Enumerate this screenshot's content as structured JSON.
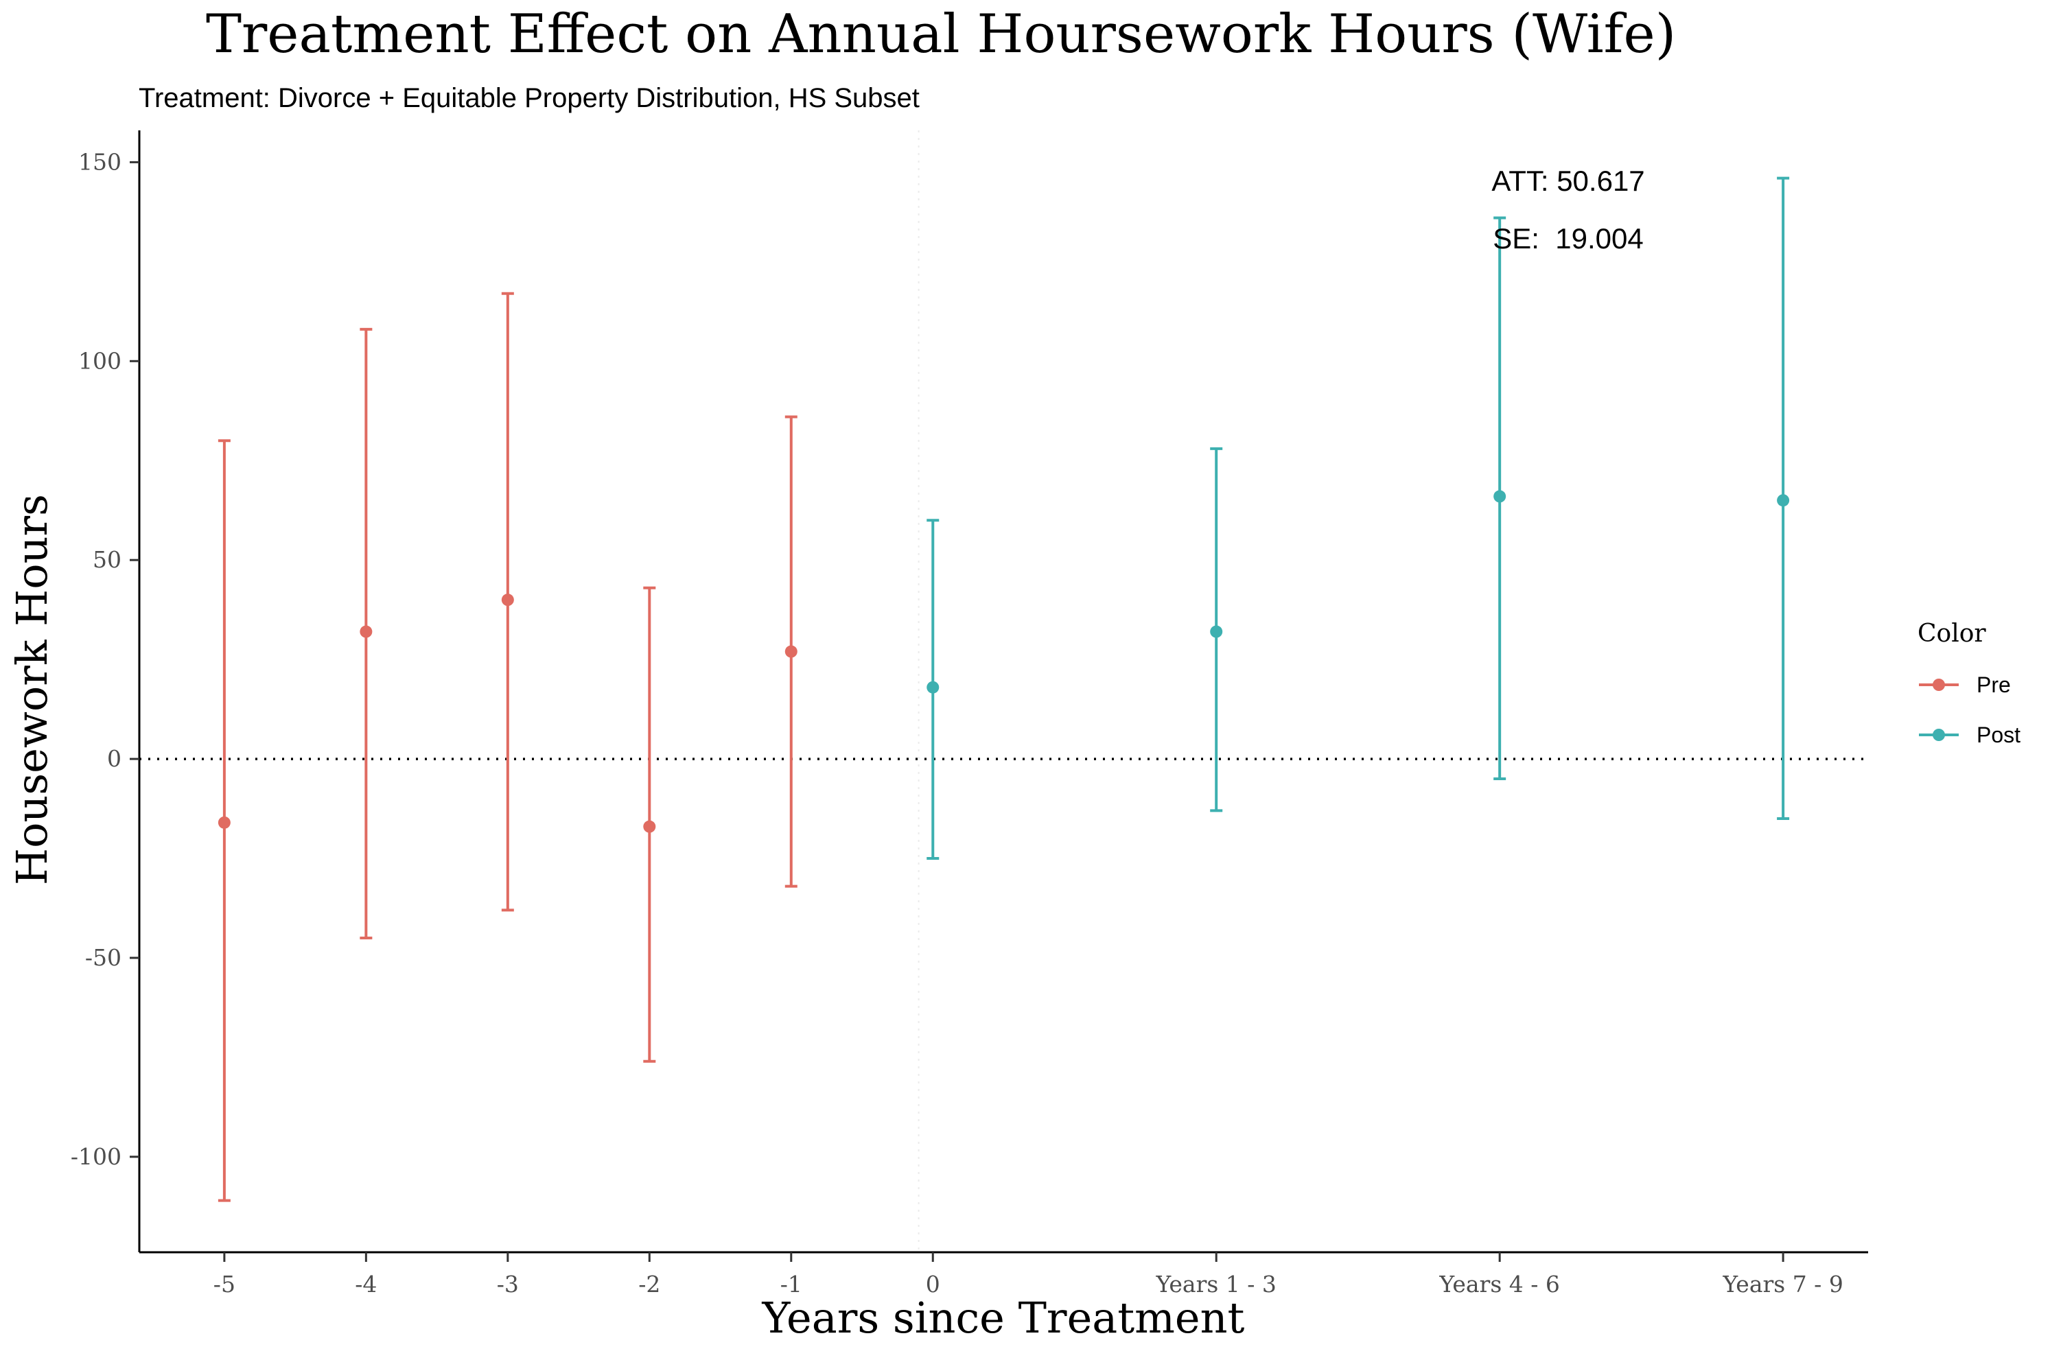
{
  "chart_data": {
    "type": "scatter",
    "title": "Treatment Effect on Annual Hoursework Hours (Wife)",
    "subtitle": "Treatment: Divorce + Equitable Property Distribution, HS Subset",
    "xlabel": "Years since Treatment",
    "ylabel": "Housework Hours",
    "categories": [
      "-5",
      "-4",
      "-3",
      "-2",
      "-1",
      "0",
      "Years 1 - 3",
      "Years 4 - 6",
      "Years 7 - 9"
    ],
    "x_positions": [
      -5,
      -4,
      -3,
      -2,
      -1,
      0,
      2,
      4,
      6
    ],
    "x_range": [
      -5.6,
      6.6
    ],
    "ylim": [
      -124,
      158
    ],
    "y_ticks": [
      -100,
      -50,
      0,
      50,
      100,
      150
    ],
    "y_tick_labels": [
      "-100",
      "-50",
      "0",
      "50",
      "100",
      "150"
    ],
    "reference_lines": [
      {
        "axis": "y",
        "value": 0,
        "style": "dotted",
        "color": "#000000"
      },
      {
        "axis": "x",
        "value": -0.1,
        "style": "dotted",
        "color": "#ebebeb"
      }
    ],
    "series": [
      {
        "name": "Pre",
        "color": "#e06b61",
        "points": [
          {
            "x": -5,
            "y": -16,
            "lower": -111,
            "upper": 80
          },
          {
            "x": -4,
            "y": 32,
            "lower": -45,
            "upper": 108
          },
          {
            "x": -3,
            "y": 40,
            "lower": -38,
            "upper": 117
          },
          {
            "x": -2,
            "y": -17,
            "lower": -76,
            "upper": 43
          },
          {
            "x": -1,
            "y": 27,
            "lower": -32,
            "upper": 86
          }
        ]
      },
      {
        "name": "Post",
        "color": "#3db0b0",
        "points": [
          {
            "x": 0,
            "y": 18,
            "lower": -25,
            "upper": 60
          },
          {
            "x": 2,
            "y": 32,
            "lower": -13,
            "upper": 78
          },
          {
            "x": 4,
            "y": 66,
            "lower": -5,
            "upper": 136
          },
          {
            "x": 6,
            "y": 65,
            "lower": -15,
            "upper": 146
          }
        ]
      }
    ],
    "annotations": [
      "ATT: 50.617",
      "SE:  19.004"
    ],
    "legend": {
      "title": "Color",
      "placement": "right",
      "entries": [
        "Pre",
        "Post"
      ]
    },
    "grid": false
  }
}
